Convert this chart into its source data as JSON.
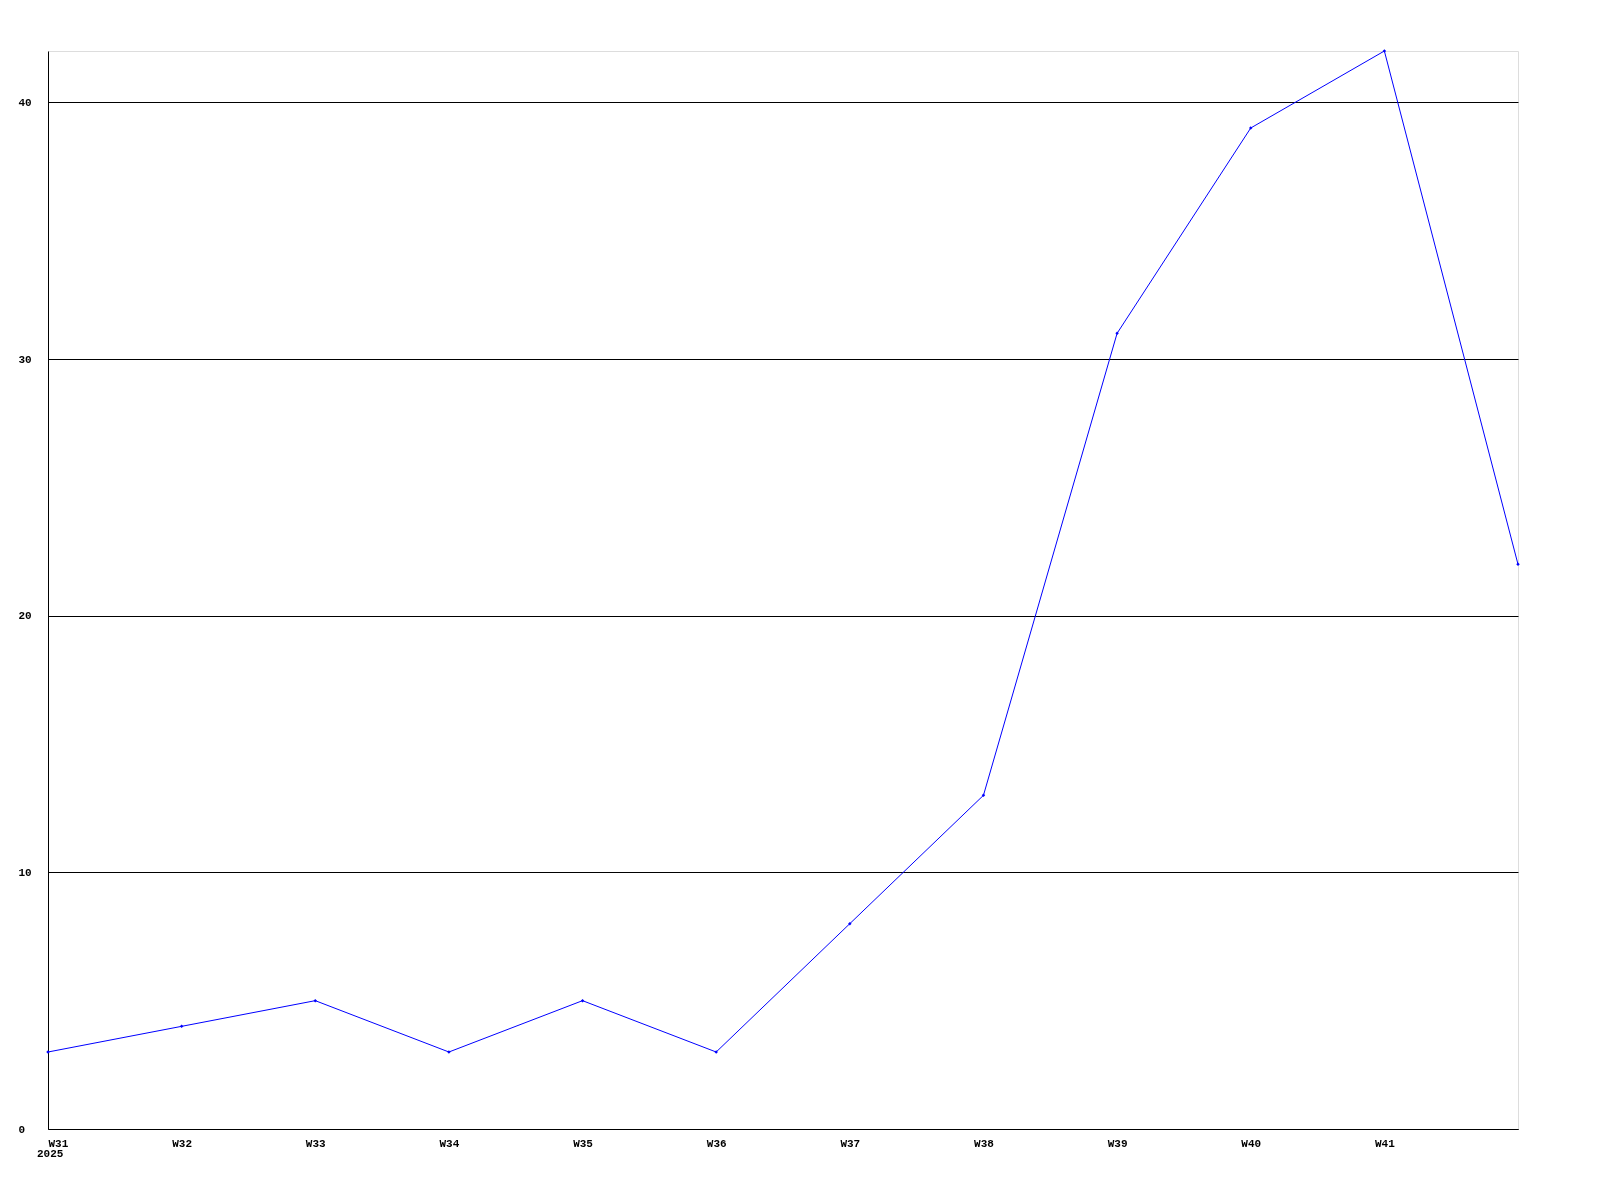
{
  "chart_data": {
    "type": "line",
    "categories": [
      "W31",
      "W32",
      "W33",
      "W34",
      "W35",
      "W36",
      "W37",
      "W38",
      "W39",
      "W40",
      "W41",
      null
    ],
    "series": [
      {
        "color": "#0000ff",
        "values": [
          3,
          4,
          5,
          3,
          5,
          3,
          8,
          13,
          31,
          39,
          42,
          22
        ]
      }
    ],
    "ylim": [
      0,
      42
    ],
    "yticks": [
      0,
      10,
      20,
      30,
      40
    ],
    "grid": "y",
    "marker": "diamond",
    "line_style": "solid",
    "annotations": [
      "2025"
    ]
  }
}
